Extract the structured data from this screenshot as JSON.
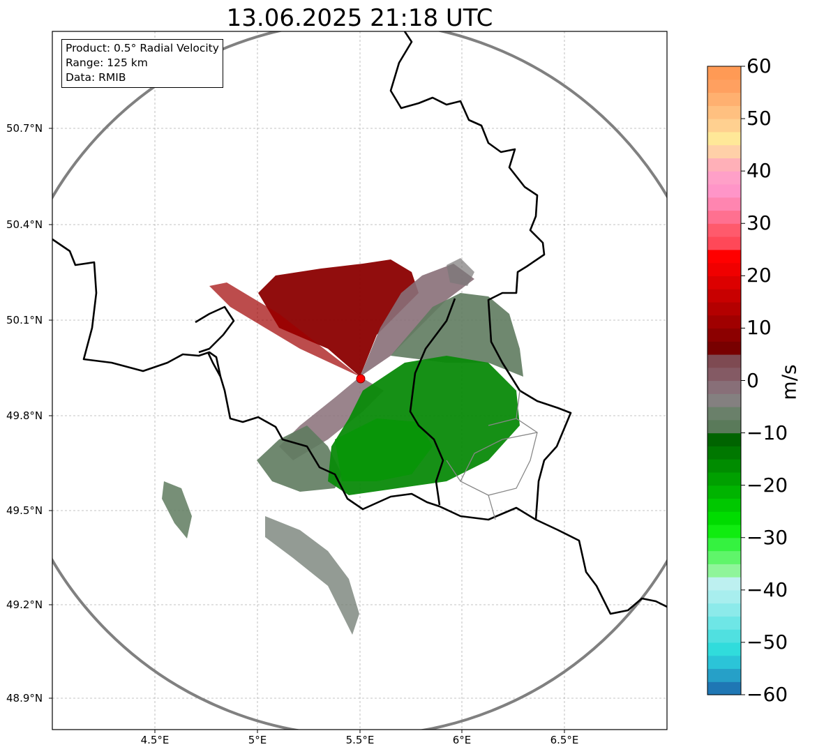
{
  "title": "13.06.2025 21:18 UTC",
  "info": {
    "product": "Product: 0.5° Radial Velocity",
    "range": "Range: 125 km",
    "source": "Data: RMIB"
  },
  "axes": {
    "lat_labels": [
      "50.7°N",
      "50.4°N",
      "50.1°N",
      "49.8°N",
      "49.5°N",
      "49.2°N",
      "48.9°N"
    ],
    "lon_labels": [
      "4.5°E",
      "5°E",
      "5.5°E",
      "6°E",
      "6.5°E"
    ],
    "lat_values": [
      50.7,
      50.4,
      50.1,
      49.8,
      49.5,
      49.2,
      48.9
    ],
    "lon_values": [
      4.5,
      5.0,
      5.5,
      6.0,
      6.5
    ],
    "lat_range": [
      48.81,
      50.99
    ],
    "lon_range": [
      4.0,
      7.0
    ],
    "grid": true
  },
  "radar": {
    "site_lat": 49.914,
    "site_lon": 5.505,
    "range_km": 125,
    "site_marker_color": "#ff0000",
    "range_ring_color": "#808080"
  },
  "colorbar": {
    "unit": "m/s",
    "min": -60,
    "max": 60,
    "tick_labels": [
      "60",
      "50",
      "40",
      "30",
      "20",
      "10",
      "0",
      "−10",
      "−20",
      "−30",
      "−40",
      "−50",
      "−60"
    ],
    "tick_values": [
      60,
      50,
      40,
      30,
      20,
      10,
      0,
      -10,
      -20,
      -30,
      -40,
      -50,
      -60
    ],
    "colors_low_to_high": [
      "#1f77b4",
      "#26a0c8",
      "#2bc4d8",
      "#30dcdc",
      "#50e0e0",
      "#6ee6e6",
      "#8ceaea",
      "#a8eeee",
      "#bdf0f0",
      "#8ff59a",
      "#5ff56a",
      "#35f240",
      "#10ec10",
      "#00dc00",
      "#00c800",
      "#00b400",
      "#00a000",
      "#008c00",
      "#007800",
      "#006400",
      "#5a7a5a",
      "#6a806a",
      "#848080",
      "#886f78",
      "#845a64",
      "#7e4a52",
      "#780000",
      "#8c0000",
      "#a00000",
      "#b40000",
      "#c80000",
      "#dc0000",
      "#f00000",
      "#ff0000",
      "#ff4858",
      "#ff5a6c",
      "#ff7090",
      "#ff85b0",
      "#ff95c8",
      "#ffa0c8",
      "#ffb0b8",
      "#ffd0a8",
      "#ffe898",
      "#ffd090",
      "#ffc080",
      "#ffb070",
      "#ffa060",
      "#ff9a55"
    ]
  }
}
